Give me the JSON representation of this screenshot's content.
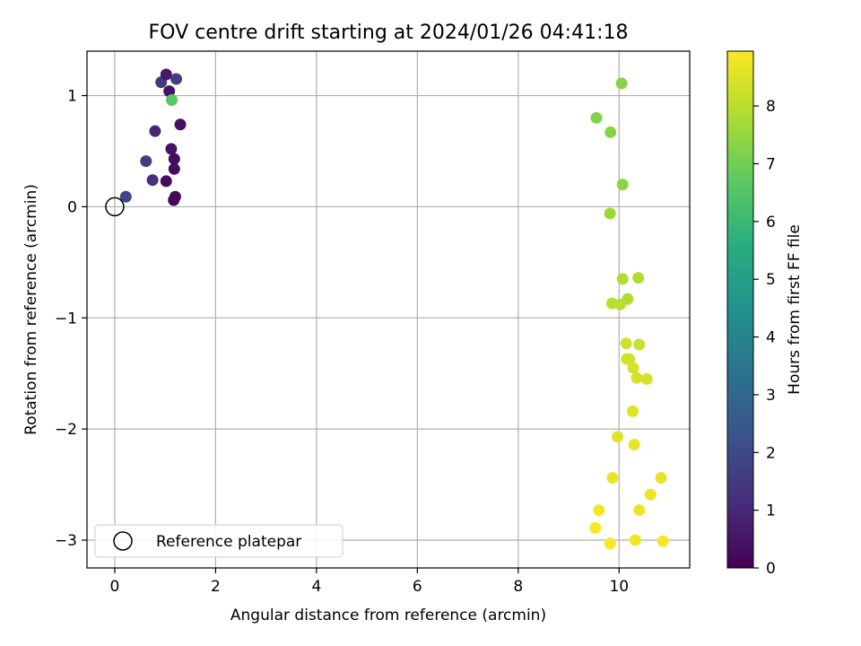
{
  "chart_data": {
    "type": "scatter",
    "title": "FOV centre drift starting at 2024/01/26 04:41:18",
    "xlabel": "Angular distance from reference (arcmin)",
    "ylabel": "Rotation from reference (arcmin)",
    "xlim": [
      -0.55,
      11.4
    ],
    "ylim": [
      -3.25,
      1.4
    ],
    "xticks": [
      0,
      2,
      4,
      6,
      8,
      10
    ],
    "xtick_labels": [
      "0",
      "2",
      "4",
      "6",
      "8",
      "10"
    ],
    "yticks": [
      1,
      0,
      -1,
      -2,
      -3
    ],
    "ytick_labels": [
      "1",
      "0",
      "−1",
      "−2",
      "−3"
    ],
    "grid": true,
    "colormap": "viridis",
    "colorbar": {
      "label": "Hours from first FF file",
      "range": [
        0,
        8.95
      ],
      "ticks": [
        0,
        1,
        2,
        3,
        4,
        5,
        6,
        7,
        8
      ],
      "tick_labels": [
        "0",
        "1",
        "2",
        "3",
        "4",
        "5",
        "6",
        "7",
        "8"
      ]
    },
    "reference_point": {
      "x": 0,
      "y": 0
    },
    "legend": {
      "label": "Reference platepar",
      "placement": "lower-left"
    },
    "points": [
      {
        "x": 0.22,
        "y": 0.09,
        "hours": 1.9
      },
      {
        "x": 0.62,
        "y": 0.41,
        "hours": 1.6
      },
      {
        "x": 0.75,
        "y": 0.24,
        "hours": 1.2
      },
      {
        "x": 0.8,
        "y": 0.68,
        "hours": 1.0
      },
      {
        "x": 0.92,
        "y": 1.12,
        "hours": 1.5
      },
      {
        "x": 1.02,
        "y": 1.19,
        "hours": 0.6
      },
      {
        "x": 1.08,
        "y": 1.04,
        "hours": 0.5
      },
      {
        "x": 1.22,
        "y": 1.15,
        "hours": 1.7
      },
      {
        "x": 1.13,
        "y": 0.96,
        "hours": 6.6
      },
      {
        "x": 1.3,
        "y": 0.74,
        "hours": 0.4
      },
      {
        "x": 1.12,
        "y": 0.52,
        "hours": 0.5
      },
      {
        "x": 1.18,
        "y": 0.43,
        "hours": 0.3
      },
      {
        "x": 1.18,
        "y": 0.34,
        "hours": 0.35
      },
      {
        "x": 1.02,
        "y": 0.23,
        "hours": 0.3
      },
      {
        "x": 1.2,
        "y": 0.09,
        "hours": 0.2
      },
      {
        "x": 1.17,
        "y": 0.06,
        "hours": 0.15
      },
      {
        "x": 10.05,
        "y": 1.11,
        "hours": 7.3
      },
      {
        "x": 9.55,
        "y": 0.8,
        "hours": 7.2
      },
      {
        "x": 9.83,
        "y": 0.67,
        "hours": 7.3
      },
      {
        "x": 10.07,
        "y": 0.2,
        "hours": 7.4
      },
      {
        "x": 9.82,
        "y": -0.06,
        "hours": 7.6
      },
      {
        "x": 10.07,
        "y": -0.65,
        "hours": 7.9
      },
      {
        "x": 10.38,
        "y": -0.64,
        "hours": 7.9
      },
      {
        "x": 10.17,
        "y": -0.83,
        "hours": 7.9
      },
      {
        "x": 9.86,
        "y": -0.87,
        "hours": 8.0
      },
      {
        "x": 10.02,
        "y": -0.88,
        "hours": 8.0
      },
      {
        "x": 10.14,
        "y": -1.23,
        "hours": 8.3
      },
      {
        "x": 10.4,
        "y": -1.24,
        "hours": 8.2
      },
      {
        "x": 10.15,
        "y": -1.37,
        "hours": 8.4
      },
      {
        "x": 10.2,
        "y": -1.37,
        "hours": 8.3
      },
      {
        "x": 10.28,
        "y": -1.45,
        "hours": 8.4
      },
      {
        "x": 10.35,
        "y": -1.54,
        "hours": 8.4
      },
      {
        "x": 10.55,
        "y": -1.55,
        "hours": 8.4
      },
      {
        "x": 10.27,
        "y": -1.84,
        "hours": 8.5
      },
      {
        "x": 9.97,
        "y": -2.07,
        "hours": 8.5
      },
      {
        "x": 10.3,
        "y": -2.14,
        "hours": 8.6
      },
      {
        "x": 9.87,
        "y": -2.44,
        "hours": 8.7
      },
      {
        "x": 10.83,
        "y": -2.44,
        "hours": 8.6
      },
      {
        "x": 10.62,
        "y": -2.59,
        "hours": 8.7
      },
      {
        "x": 9.6,
        "y": -2.73,
        "hours": 8.8
      },
      {
        "x": 10.4,
        "y": -2.73,
        "hours": 8.7
      },
      {
        "x": 9.53,
        "y": -2.89,
        "hours": 8.9
      },
      {
        "x": 10.32,
        "y": -3.0,
        "hours": 8.8
      },
      {
        "x": 9.82,
        "y": -3.03,
        "hours": 8.9
      },
      {
        "x": 10.87,
        "y": -3.01,
        "hours": 8.85
      }
    ]
  }
}
